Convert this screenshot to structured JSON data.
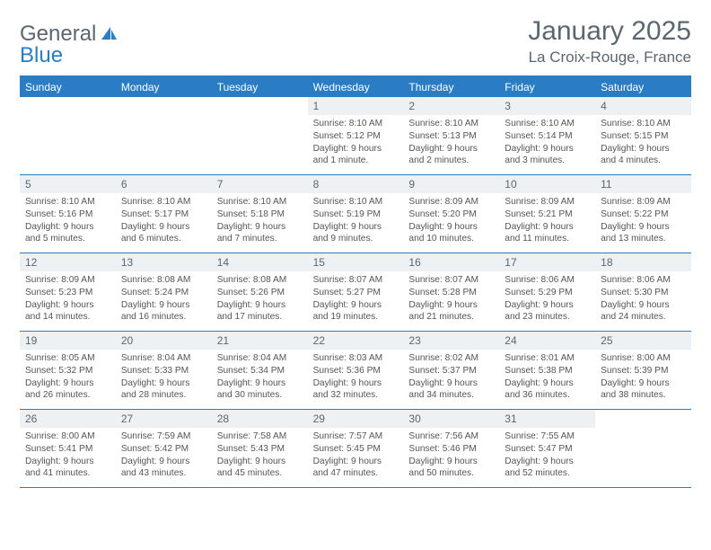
{
  "logo": {
    "text1": "General",
    "text2": "Blue"
  },
  "colors": {
    "accent": "#2a7dc4",
    "header_text": "#ffffff",
    "text": "#555555",
    "title": "#5a6670",
    "daynum_bg": "#eef1f3",
    "bg": "#ffffff"
  },
  "title": "January 2025",
  "subtitle": "La Croix-Rouge, France",
  "day_names": [
    "Sunday",
    "Monday",
    "Tuesday",
    "Wednesday",
    "Thursday",
    "Friday",
    "Saturday"
  ],
  "weeks": [
    [
      {
        "day": "",
        "sunrise": "",
        "sunset": "",
        "daylight": ""
      },
      {
        "day": "",
        "sunrise": "",
        "sunset": "",
        "daylight": ""
      },
      {
        "day": "",
        "sunrise": "",
        "sunset": "",
        "daylight": ""
      },
      {
        "day": "1",
        "sunrise": "Sunrise: 8:10 AM",
        "sunset": "Sunset: 5:12 PM",
        "daylight": "Daylight: 9 hours and 1 minute."
      },
      {
        "day": "2",
        "sunrise": "Sunrise: 8:10 AM",
        "sunset": "Sunset: 5:13 PM",
        "daylight": "Daylight: 9 hours and 2 minutes."
      },
      {
        "day": "3",
        "sunrise": "Sunrise: 8:10 AM",
        "sunset": "Sunset: 5:14 PM",
        "daylight": "Daylight: 9 hours and 3 minutes."
      },
      {
        "day": "4",
        "sunrise": "Sunrise: 8:10 AM",
        "sunset": "Sunset: 5:15 PM",
        "daylight": "Daylight: 9 hours and 4 minutes."
      }
    ],
    [
      {
        "day": "5",
        "sunrise": "Sunrise: 8:10 AM",
        "sunset": "Sunset: 5:16 PM",
        "daylight": "Daylight: 9 hours and 5 minutes."
      },
      {
        "day": "6",
        "sunrise": "Sunrise: 8:10 AM",
        "sunset": "Sunset: 5:17 PM",
        "daylight": "Daylight: 9 hours and 6 minutes."
      },
      {
        "day": "7",
        "sunrise": "Sunrise: 8:10 AM",
        "sunset": "Sunset: 5:18 PM",
        "daylight": "Daylight: 9 hours and 7 minutes."
      },
      {
        "day": "8",
        "sunrise": "Sunrise: 8:10 AM",
        "sunset": "Sunset: 5:19 PM",
        "daylight": "Daylight: 9 hours and 9 minutes."
      },
      {
        "day": "9",
        "sunrise": "Sunrise: 8:09 AM",
        "sunset": "Sunset: 5:20 PM",
        "daylight": "Daylight: 9 hours and 10 minutes."
      },
      {
        "day": "10",
        "sunrise": "Sunrise: 8:09 AM",
        "sunset": "Sunset: 5:21 PM",
        "daylight": "Daylight: 9 hours and 11 minutes."
      },
      {
        "day": "11",
        "sunrise": "Sunrise: 8:09 AM",
        "sunset": "Sunset: 5:22 PM",
        "daylight": "Daylight: 9 hours and 13 minutes."
      }
    ],
    [
      {
        "day": "12",
        "sunrise": "Sunrise: 8:09 AM",
        "sunset": "Sunset: 5:23 PM",
        "daylight": "Daylight: 9 hours and 14 minutes."
      },
      {
        "day": "13",
        "sunrise": "Sunrise: 8:08 AM",
        "sunset": "Sunset: 5:24 PM",
        "daylight": "Daylight: 9 hours and 16 minutes."
      },
      {
        "day": "14",
        "sunrise": "Sunrise: 8:08 AM",
        "sunset": "Sunset: 5:26 PM",
        "daylight": "Daylight: 9 hours and 17 minutes."
      },
      {
        "day": "15",
        "sunrise": "Sunrise: 8:07 AM",
        "sunset": "Sunset: 5:27 PM",
        "daylight": "Daylight: 9 hours and 19 minutes."
      },
      {
        "day": "16",
        "sunrise": "Sunrise: 8:07 AM",
        "sunset": "Sunset: 5:28 PM",
        "daylight": "Daylight: 9 hours and 21 minutes."
      },
      {
        "day": "17",
        "sunrise": "Sunrise: 8:06 AM",
        "sunset": "Sunset: 5:29 PM",
        "daylight": "Daylight: 9 hours and 23 minutes."
      },
      {
        "day": "18",
        "sunrise": "Sunrise: 8:06 AM",
        "sunset": "Sunset: 5:30 PM",
        "daylight": "Daylight: 9 hours and 24 minutes."
      }
    ],
    [
      {
        "day": "19",
        "sunrise": "Sunrise: 8:05 AM",
        "sunset": "Sunset: 5:32 PM",
        "daylight": "Daylight: 9 hours and 26 minutes."
      },
      {
        "day": "20",
        "sunrise": "Sunrise: 8:04 AM",
        "sunset": "Sunset: 5:33 PM",
        "daylight": "Daylight: 9 hours and 28 minutes."
      },
      {
        "day": "21",
        "sunrise": "Sunrise: 8:04 AM",
        "sunset": "Sunset: 5:34 PM",
        "daylight": "Daylight: 9 hours and 30 minutes."
      },
      {
        "day": "22",
        "sunrise": "Sunrise: 8:03 AM",
        "sunset": "Sunset: 5:36 PM",
        "daylight": "Daylight: 9 hours and 32 minutes."
      },
      {
        "day": "23",
        "sunrise": "Sunrise: 8:02 AM",
        "sunset": "Sunset: 5:37 PM",
        "daylight": "Daylight: 9 hours and 34 minutes."
      },
      {
        "day": "24",
        "sunrise": "Sunrise: 8:01 AM",
        "sunset": "Sunset: 5:38 PM",
        "daylight": "Daylight: 9 hours and 36 minutes."
      },
      {
        "day": "25",
        "sunrise": "Sunrise: 8:00 AM",
        "sunset": "Sunset: 5:39 PM",
        "daylight": "Daylight: 9 hours and 38 minutes."
      }
    ],
    [
      {
        "day": "26",
        "sunrise": "Sunrise: 8:00 AM",
        "sunset": "Sunset: 5:41 PM",
        "daylight": "Daylight: 9 hours and 41 minutes."
      },
      {
        "day": "27",
        "sunrise": "Sunrise: 7:59 AM",
        "sunset": "Sunset: 5:42 PM",
        "daylight": "Daylight: 9 hours and 43 minutes."
      },
      {
        "day": "28",
        "sunrise": "Sunrise: 7:58 AM",
        "sunset": "Sunset: 5:43 PM",
        "daylight": "Daylight: 9 hours and 45 minutes."
      },
      {
        "day": "29",
        "sunrise": "Sunrise: 7:57 AM",
        "sunset": "Sunset: 5:45 PM",
        "daylight": "Daylight: 9 hours and 47 minutes."
      },
      {
        "day": "30",
        "sunrise": "Sunrise: 7:56 AM",
        "sunset": "Sunset: 5:46 PM",
        "daylight": "Daylight: 9 hours and 50 minutes."
      },
      {
        "day": "31",
        "sunrise": "Sunrise: 7:55 AM",
        "sunset": "Sunset: 5:47 PM",
        "daylight": "Daylight: 9 hours and 52 minutes."
      },
      {
        "day": "",
        "sunrise": "",
        "sunset": "",
        "daylight": ""
      }
    ]
  ]
}
